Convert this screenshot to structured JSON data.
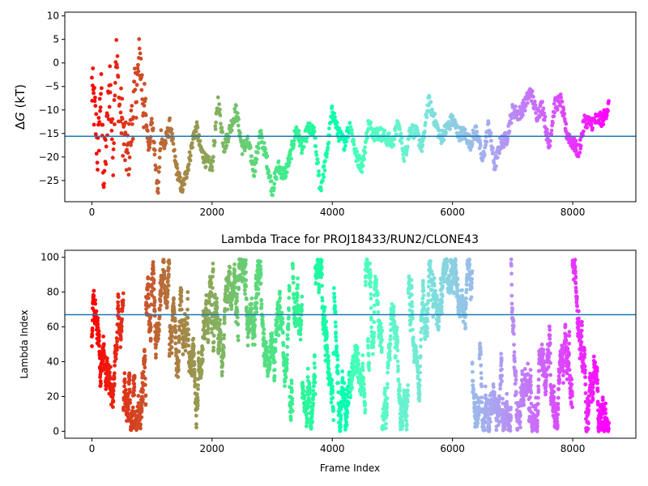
{
  "chart_data": [
    {
      "type": "scatter",
      "title": "",
      "xlabel": "",
      "ylabel": "ΔG (kT)",
      "ylabel_parts": {
        "delta": "Δ",
        "italic": "G",
        "rest": " (kT)"
      },
      "xlim": [
        -450,
        9050
      ],
      "ylim": [
        -29.5,
        10.8
      ],
      "xticks": [
        0,
        2000,
        4000,
        6000,
        8000
      ],
      "yticks": [
        10,
        5,
        0,
        -5,
        -10,
        -15,
        -20,
        -25
      ],
      "hline": -15.6,
      "hline_color": "#1f77b4",
      "colormap": "rainbow (red at frame 0 to violet at frame ~8600)",
      "x_max": 8600,
      "series": [
        {
          "markers": "dots colored by frame index",
          "x": [
            0,
            60,
            100,
            150,
            200,
            250,
            300,
            350,
            400,
            450,
            500,
            550,
            600,
            650,
            700,
            750,
            800,
            850,
            900,
            950,
            1000,
            1050,
            1100,
            1150,
            1200,
            1300,
            1400,
            1500,
            1600,
            1700,
            1750,
            1800,
            1900,
            2000,
            2050,
            2100,
            2200,
            2300,
            2400,
            2500,
            2600,
            2700,
            2800,
            2900,
            3000,
            3100,
            3200,
            3300,
            3400,
            3500,
            3600,
            3700,
            3800,
            3900,
            4000,
            4100,
            4200,
            4300,
            4400,
            4500,
            4600,
            4700,
            4800,
            4900,
            5000,
            5100,
            5200,
            5300,
            5400,
            5500,
            5600,
            5700,
            5800,
            5900,
            6000,
            6100,
            6200,
            6300,
            6400,
            6500,
            6600,
            6700,
            6800,
            6900,
            7000,
            7100,
            7200,
            7300,
            7400,
            7500,
            7600,
            7700,
            7800,
            7900,
            8000,
            8100,
            8200,
            8300,
            8400,
            8500,
            8600
          ],
          "y": [
            -5,
            -12,
            -20,
            -5,
            -25,
            -15,
            -3,
            -20,
            3,
            -8,
            -12,
            -18,
            -20,
            -15,
            -8,
            -5,
            2,
            -8,
            -12,
            -18,
            -12,
            -20,
            -28,
            -15,
            -18,
            -13,
            -22,
            -27,
            -22,
            -15,
            -14,
            -18,
            -21,
            -22,
            -15,
            -8,
            -18,
            -14,
            -10,
            -18,
            -17,
            -23,
            -15,
            -20,
            -27,
            -22,
            -24,
            -20,
            -14,
            -18,
            -14,
            -15,
            -27,
            -20,
            -10,
            -15,
            -17,
            -13,
            -20,
            -22,
            -13,
            -15,
            -15,
            -16,
            -17,
            -13,
            -20,
            -14,
            -15,
            -18,
            -8,
            -12,
            -16,
            -14,
            -12,
            -15,
            -15,
            -17,
            -14,
            -21,
            -13,
            -22,
            -17,
            -16,
            -10,
            -11,
            -9,
            -6,
            -11,
            -9,
            -18,
            -9,
            -8,
            -15,
            -17,
            -19,
            -12,
            -13,
            -12,
            -12,
            -9
          ]
        }
      ]
    },
    {
      "type": "scatter",
      "title": "Lambda Trace for PROJ18433/RUN2/CLONE43",
      "xlabel": "Frame Index",
      "ylabel": "Lambda Index",
      "xlim": [
        -450,
        9050
      ],
      "ylim": [
        -4,
        104
      ],
      "xticks": [
        0,
        2000,
        4000,
        6000,
        8000
      ],
      "yticks": [
        0,
        20,
        40,
        60,
        80,
        100
      ],
      "hline": 67,
      "hline_color": "#1f77b4",
      "colormap": "rainbow (red at frame 0 to violet at frame ~8600)",
      "x_max": 8600,
      "lambda_range": [
        0,
        99
      ],
      "series": [
        {
          "markers": "dense dots colored by frame index; lambda index random-walks between 0 and 99"
        }
      ]
    }
  ]
}
